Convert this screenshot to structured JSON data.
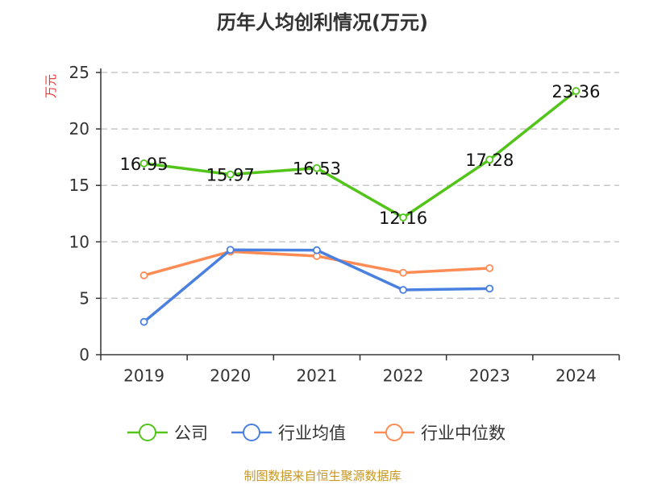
{
  "chart_data": {
    "type": "line",
    "title": "历年人均创利情况(万元)",
    "ylabel": "万元",
    "categories": [
      "2019",
      "2020",
      "2021",
      "2022",
      "2023",
      "2024"
    ],
    "ylim": [
      0,
      25
    ],
    "yticks": [
      0,
      5,
      10,
      15,
      20,
      25
    ],
    "grid": true,
    "legend_position": "bottom",
    "series": [
      {
        "name": "公司",
        "color": "#52c41a",
        "values": [
          16.95,
          15.97,
          16.53,
          12.16,
          17.28,
          23.36
        ],
        "labels": [
          "16.95",
          "15.97",
          "16.53",
          "12.16",
          "17.28",
          "23.36"
        ]
      },
      {
        "name": "行业均值",
        "color": "#4a80e0",
        "values": [
          2.91,
          9.29,
          9.26,
          5.74,
          5.86,
          null
        ]
      },
      {
        "name": "行业中位数",
        "color": "#ff8c55",
        "values": [
          7.03,
          9.14,
          8.74,
          7.26,
          7.67,
          null
        ]
      }
    ]
  },
  "source": "制图数据来自恒生聚源数据库"
}
